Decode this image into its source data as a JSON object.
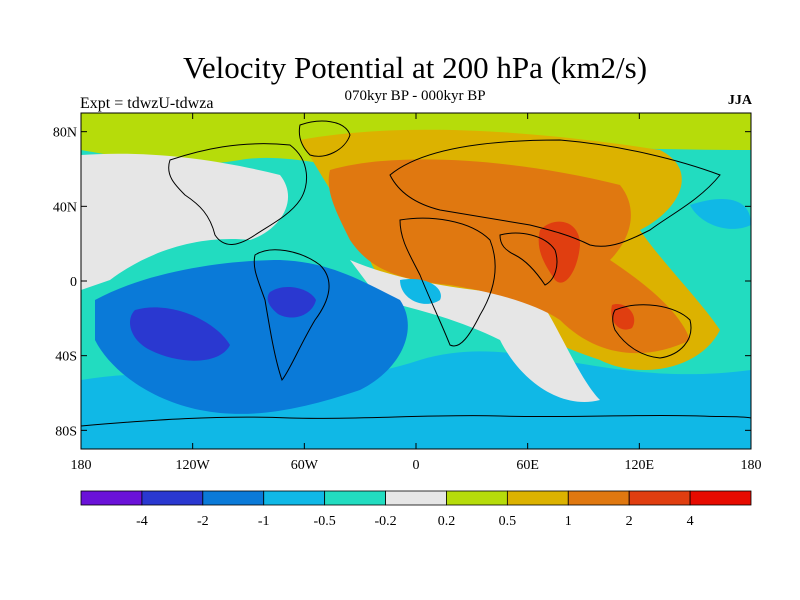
{
  "header": {
    "title": "Velocity Potential at 200 hPa (km2/s)",
    "subtitle": "070kyr BP - 000kyr BP",
    "left_label": "Expt = tdwzU-tdwza",
    "right_label": "JJA"
  },
  "map": {
    "projection": "cylindrical equidistant",
    "lat_ticks": [
      "80N",
      "40N",
      "0",
      "40S",
      "80S"
    ],
    "lon_ticks": [
      "180",
      "120W",
      "60W",
      "0",
      "60E",
      "120E",
      "180"
    ]
  },
  "colorbar": {
    "colors": [
      "#6a12d8",
      "#2a38d0",
      "#0a7ad8",
      "#10b8e6",
      "#22dcc0",
      "#e6e6e6",
      "#b6dc0a",
      "#dcb200",
      "#e07810",
      "#e03e10",
      "#e60a00"
    ],
    "labels": [
      "-4",
      "-2",
      "-1",
      "-0.5",
      "-0.2",
      "0.2",
      "0.5",
      "1",
      "2",
      "4"
    ]
  }
}
